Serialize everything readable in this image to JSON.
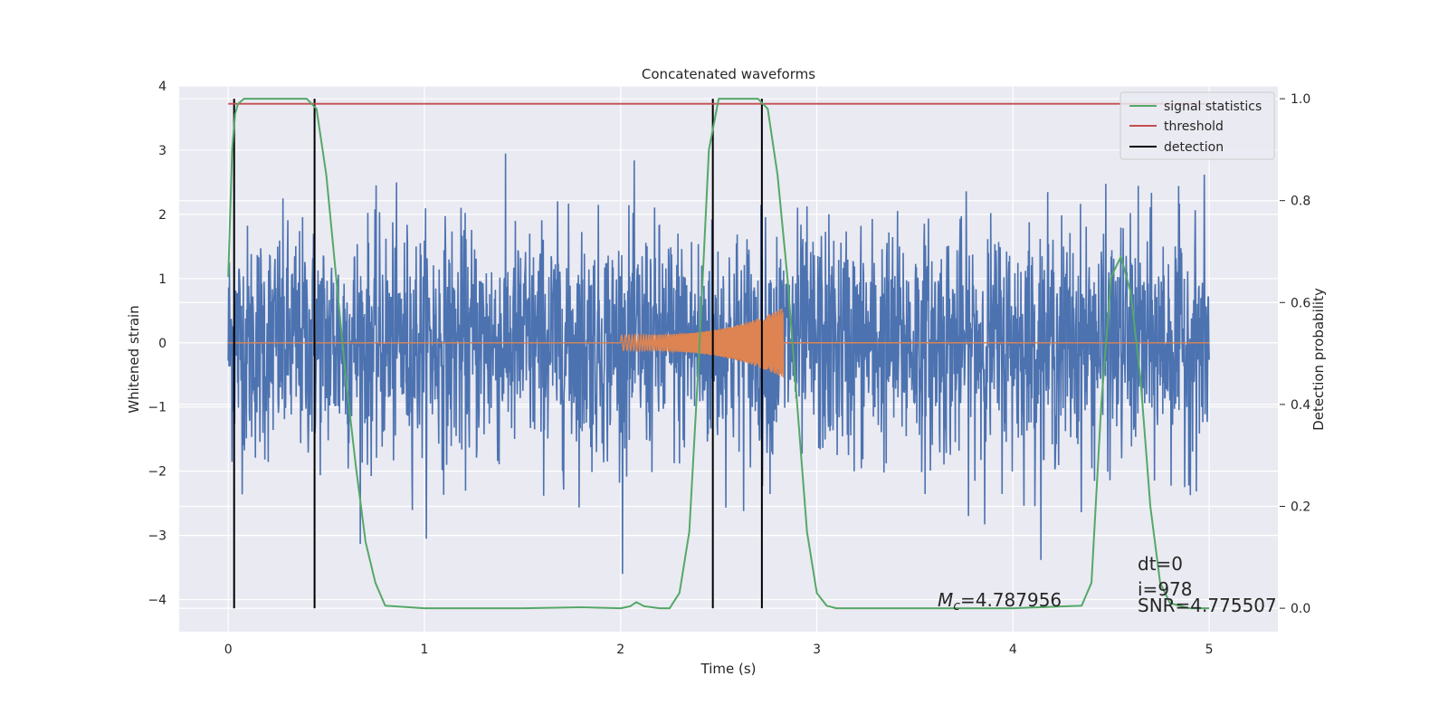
{
  "chart_data": {
    "type": "line",
    "title": "Concatenated waveforms",
    "xlabel": "Time (s)",
    "ylabel": "Whitened strain",
    "y2label": "Detection probability",
    "xlim": [
      -0.25,
      5.35
    ],
    "ylim": [
      -4.5,
      4.0
    ],
    "y2lim": [
      -0.046,
      1.025
    ],
    "xticks": [
      "0",
      "1",
      "2",
      "3",
      "4",
      "5"
    ],
    "yticks": [
      "4",
      "3",
      "2",
      "1",
      "0",
      "−1",
      "−2",
      "−3",
      "−4"
    ],
    "y2ticks": [
      "1.0",
      "0.8",
      "0.6",
      "0.4",
      "0.2",
      "0.0"
    ],
    "grid": true,
    "legend": {
      "placement": "top-right",
      "entries": [
        {
          "label": "signal statistics",
          "color": "#55a868"
        },
        {
          "label": "threshold",
          "color": "#c44e52"
        },
        {
          "label": "detection",
          "color": "#000000"
        }
      ]
    },
    "series": [
      {
        "name": "whitened strain",
        "color": "#4c72b0",
        "x_range": [
          0,
          5
        ],
        "approx_std": 0.9,
        "peak_abs": 3.6
      },
      {
        "name": "template waveform",
        "color": "#dd8452",
        "x_range": [
          2.0,
          2.83
        ],
        "amplitude_start": 0.12,
        "amplitude_end": 0.55
      },
      {
        "name": "signal statistics",
        "color": "#55a868",
        "axis": "right",
        "x": [
          0,
          0.02,
          0.035,
          0.05,
          0.08,
          0.1,
          0.2,
          0.3,
          0.4,
          0.45,
          0.5,
          0.55,
          0.6,
          0.65,
          0.7,
          0.75,
          0.8,
          1.0,
          1.5,
          1.8,
          2.0,
          2.05,
          2.08,
          2.12,
          2.2,
          2.25,
          2.3,
          2.35,
          2.4,
          2.45,
          2.5,
          2.6,
          2.7,
          2.75,
          2.8,
          2.85,
          2.9,
          2.95,
          3.0,
          3.05,
          3.1,
          3.5,
          4.0,
          4.35,
          4.4,
          4.45,
          4.5,
          4.55,
          4.6,
          4.65,
          4.7,
          4.75,
          4.8,
          4.9,
          5.0
        ],
        "values": [
          0.65,
          0.9,
          0.97,
          0.99,
          1.0,
          1.0,
          1.0,
          1.0,
          1.0,
          0.98,
          0.85,
          0.65,
          0.45,
          0.28,
          0.13,
          0.05,
          0.005,
          0.0,
          0.0,
          0.002,
          0.0,
          0.004,
          0.012,
          0.004,
          0.0,
          0.0,
          0.03,
          0.15,
          0.5,
          0.9,
          1.0,
          1.0,
          1.0,
          0.98,
          0.85,
          0.65,
          0.4,
          0.15,
          0.03,
          0.005,
          0.0,
          0.0,
          0.0,
          0.005,
          0.05,
          0.4,
          0.65,
          0.69,
          0.62,
          0.45,
          0.2,
          0.05,
          0.01,
          0.0,
          0.0
        ]
      },
      {
        "name": "threshold",
        "color": "#c44e52",
        "axis": "right",
        "x": [
          0,
          5
        ],
        "values": [
          0.99,
          0.99
        ]
      }
    ],
    "detections": [
      0.03,
      0.44,
      2.47,
      2.72
    ],
    "annotations": {
      "mc_label": "M",
      "mc_sub": "c",
      "mc_value": "=4.787956",
      "dt": "dt=0",
      "i": "i=978",
      "snr": "SNR=4.775507"
    }
  }
}
